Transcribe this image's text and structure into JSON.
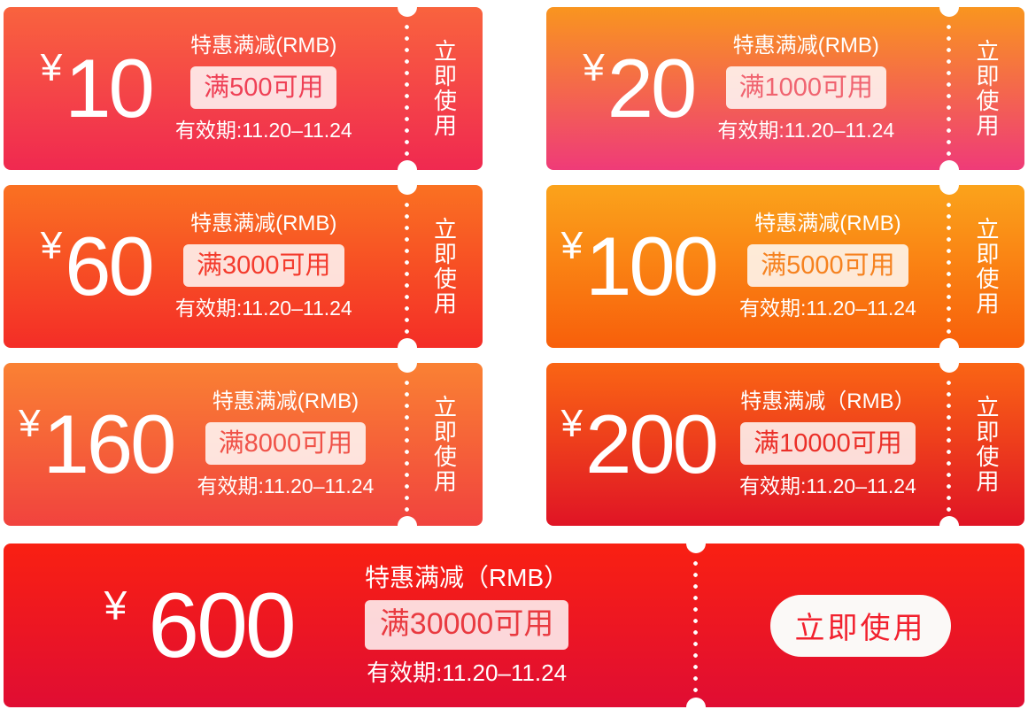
{
  "page": {
    "background": "#FFFFFF"
  },
  "shared": {
    "currency": "¥",
    "badge_background": "rgba(255,255,255,0.83)",
    "perforation_color": "#FFFFFF"
  },
  "coupons": [
    {
      "amount": "10",
      "title": "特惠满减(RMB)",
      "condition": "满500可用",
      "validity": "有效期:11.20–11.24",
      "action": "立即使用",
      "gradient_top": "#F9633E",
      "gradient_bottom": "#F02950",
      "accent": "#EF4156"
    },
    {
      "amount": "20",
      "title": "特惠满减(RMB)",
      "condition": "满1000可用",
      "validity": "有效期:11.20–11.24",
      "action": "立即使用",
      "gradient_top": "#F9951F",
      "gradient_bottom": "#EF3B78",
      "accent": "#F06470"
    },
    {
      "amount": "60",
      "title": "特惠满减(RMB)",
      "condition": "满3000可用",
      "validity": "有效期:11.20–11.24",
      "action": "立即使用",
      "gradient_top": "#FA7122",
      "gradient_bottom": "#F42D27",
      "accent": "#F43B2D"
    },
    {
      "amount": "100",
      "title": "特惠满减(RMB)",
      "condition": "满5000可用",
      "validity": "有效期:11.20–11.24",
      "action": "立即使用",
      "gradient_top": "#FBA31B",
      "gradient_bottom": "#F85F0B",
      "accent": "#F6821F"
    },
    {
      "amount": "160",
      "title": "特惠满减(RMB)",
      "condition": "满8000可用",
      "validity": "有效期:11.20–11.24",
      "action": "立即使用",
      "gradient_top": "#FA8133",
      "gradient_bottom": "#F1433E",
      "accent": "#F05248"
    },
    {
      "amount": "200",
      "title": "特惠满减（RMB）",
      "condition": "满10000可用",
      "validity": "有效期:11.20–11.24",
      "action": "立即使用",
      "gradient_top": "#FA6514",
      "gradient_bottom": "#E01425",
      "accent": "#EB2F28"
    },
    {
      "amount": "600",
      "title": "特惠满减（RMB）",
      "condition": "满30000可用",
      "validity": "有效期:11.20–11.24",
      "action": "立即使用",
      "gradient_top": "#F92012",
      "gradient_bottom": "#E00D33",
      "accent": "#E93A40",
      "button_text_color": "#F2212E",
      "button_background": "#FBF9F7"
    }
  ]
}
